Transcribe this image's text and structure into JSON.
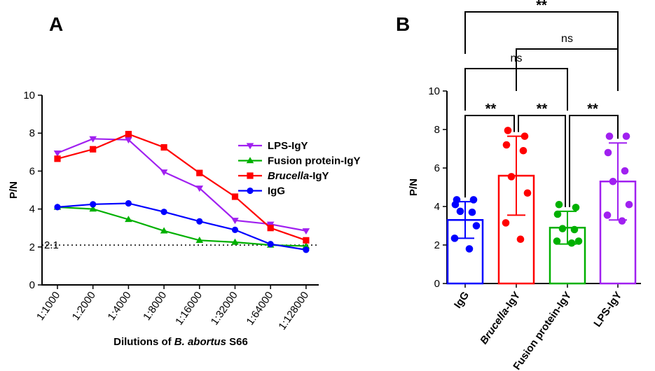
{
  "chart_data": [
    {
      "panel": "A",
      "type": "line",
      "categories": [
        "1:1000",
        "1:2000",
        "1:4000",
        "1:8000",
        "1:16000",
        "1:32000",
        "1:64000",
        "1:128000"
      ],
      "xlabel_parts": [
        "Dilutions of ",
        "B. abortus",
        " S66"
      ],
      "ylabel": "P/N",
      "ylim": [
        0,
        10
      ],
      "yticks": [
        0,
        2,
        4,
        6,
        8,
        10
      ],
      "threshold": {
        "value": 2.1,
        "label": "2.1"
      },
      "series": [
        {
          "name": "LPS-IgY",
          "name_parts": [
            "LPS-IgY"
          ],
          "color": "#A020F0",
          "marker": "triangle-down",
          "values": [
            6.95,
            7.7,
            7.65,
            5.95,
            5.1,
            3.4,
            3.2,
            2.85
          ]
        },
        {
          "name": "Fusion protein-IgY",
          "name_parts": [
            "Fusion protein-IgY"
          ],
          "color": "#00B000",
          "marker": "triangle-up",
          "values": [
            4.1,
            4.0,
            3.45,
            2.85,
            2.35,
            2.25,
            2.1,
            2.05
          ]
        },
        {
          "name": "Brucella-IgY",
          "name_parts": [
            "Brucella",
            "-IgY"
          ],
          "color": "#FF0000",
          "marker": "square",
          "values": [
            6.65,
            7.15,
            7.95,
            7.25,
            5.9,
            4.65,
            3.0,
            2.35
          ]
        },
        {
          "name": "IgG",
          "name_parts": [
            "IgG"
          ],
          "color": "#0000FF",
          "marker": "circle",
          "values": [
            4.1,
            4.25,
            4.3,
            3.85,
            3.35,
            2.9,
            2.15,
            1.85
          ]
        }
      ]
    },
    {
      "panel": "B",
      "type": "bar",
      "categories": [
        {
          "parts": [
            "IgG"
          ],
          "color": "#0000FF"
        },
        {
          "parts": [
            "Brucella",
            "-IgY"
          ],
          "color": "#FF0000"
        },
        {
          "parts": [
            "Fusion protein-IgY"
          ],
          "color": "#00B000"
        },
        {
          "parts": [
            "LPS-IgY"
          ],
          "color": "#A020F0"
        }
      ],
      "ylabel": "P/N",
      "ylim": [
        0,
        10
      ],
      "yticks": [
        0,
        2,
        4,
        6,
        8,
        10
      ],
      "values": [
        3.3,
        5.6,
        2.9,
        5.3
      ],
      "sd": [
        0.95,
        2.05,
        0.85,
        2.0
      ],
      "points": [
        [
          4.35,
          4.35,
          4.1,
          3.7,
          3.75,
          3.0,
          2.35,
          1.8
        ],
        [
          7.95,
          7.65,
          7.2,
          6.9,
          5.55,
          4.7,
          3.15,
          2.3
        ],
        [
          4.1,
          3.95,
          3.6,
          2.8,
          2.85,
          2.2,
          2.2,
          2.1
        ],
        [
          7.65,
          7.65,
          6.8,
          5.85,
          5.3,
          4.1,
          3.55,
          3.25
        ]
      ],
      "comparisons": [
        {
          "from": 0,
          "to": 1,
          "label": "**",
          "level": 0
        },
        {
          "from": 1,
          "to": 2,
          "label": "**",
          "level": 0
        },
        {
          "from": 2,
          "to": 3,
          "label": "**",
          "level": 0
        },
        {
          "from": 0,
          "to": 2,
          "label": "ns",
          "level": 1
        },
        {
          "from": 1,
          "to": 3,
          "label": "ns",
          "level": 2
        },
        {
          "from": 0,
          "to": 3,
          "label": "**",
          "level": 3
        }
      ]
    }
  ]
}
